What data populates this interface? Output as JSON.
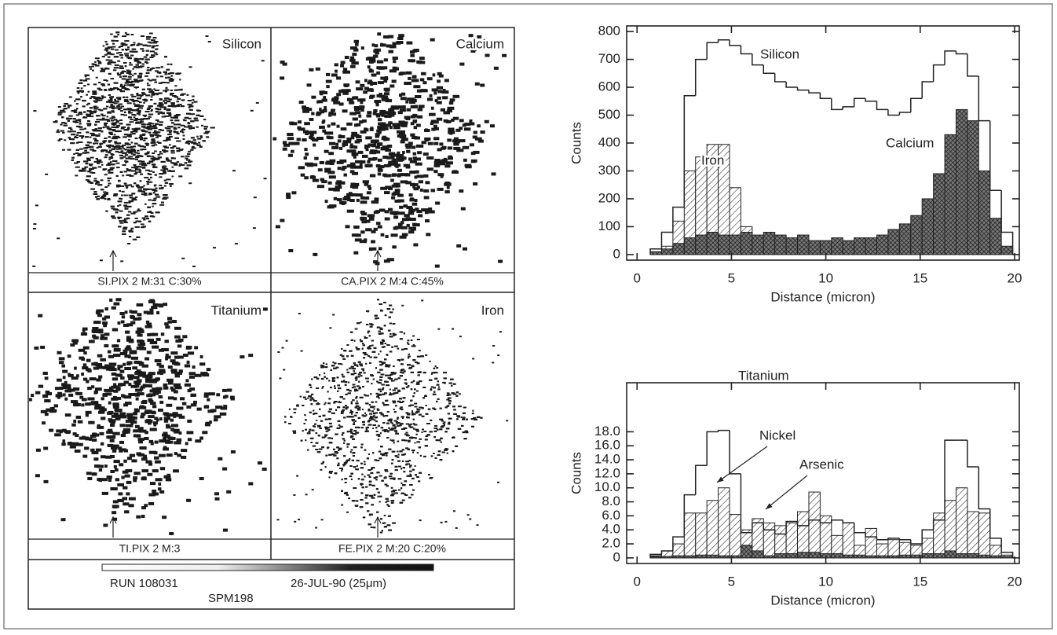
{
  "maps": {
    "panels": [
      {
        "label": "Silicon",
        "caption": "SI.PIX 2 M:31 C:30%"
      },
      {
        "label": "Calcium",
        "caption": "CA.PIX 2 M:4 C:45%"
      },
      {
        "label": "Titanium",
        "caption": "TI.PIX 2 M:3"
      },
      {
        "label": "Iron",
        "caption": "FE.PIX 2 M:20 C:20%"
      }
    ],
    "footer": {
      "run": "RUN 108031",
      "date": "26-JUL-90 (25μm)",
      "sample": "SPM198"
    }
  },
  "chart_data": [
    {
      "type": "histogram",
      "xlabel": "Distance (micron)",
      "ylabel": "Counts",
      "color": "#222",
      "bins": [
        0.7,
        1.3,
        1.9,
        2.5,
        3.1,
        3.7,
        4.3,
        4.9,
        5.5,
        6.1,
        6.7,
        7.3,
        7.9,
        8.5,
        9.1,
        9.7,
        10.3,
        10.9,
        11.5,
        12.1,
        12.7,
        13.3,
        13.9,
        14.5,
        15.1,
        15.7,
        16.3,
        16.9,
        17.5,
        18.1,
        18.7,
        19.3,
        19.9
      ],
      "series": [
        {
          "name": "Silicon",
          "fill": "none",
          "values": [
            20,
            80,
            170,
            570,
            700,
            760,
            770,
            750,
            720,
            680,
            650,
            620,
            600,
            590,
            580,
            560,
            520,
            530,
            560,
            550,
            520,
            500,
            510,
            560,
            620,
            680,
            730,
            720,
            640,
            480,
            230,
            80
          ]
        },
        {
          "name": "Iron",
          "fill": "hatch",
          "values": [
            10,
            30,
            120,
            300,
            350,
            395,
            395,
            240,
            100,
            60,
            40,
            30,
            20,
            10,
            10,
            10,
            10,
            10,
            10,
            10,
            10,
            10,
            10,
            10,
            10,
            10,
            10,
            10,
            10,
            10,
            10,
            0
          ]
        },
        {
          "name": "Calcium",
          "fill": "crosshatch",
          "values": [
            10,
            20,
            40,
            60,
            70,
            80,
            70,
            70,
            80,
            70,
            80,
            70,
            60,
            70,
            50,
            50,
            60,
            50,
            60,
            60,
            70,
            90,
            110,
            140,
            200,
            290,
            430,
            520,
            480,
            300,
            130,
            30
          ]
        }
      ],
      "xlim": [
        -0.55,
        20.25
      ],
      "ylim": [
        -20,
        820
      ],
      "xticks": [
        0,
        5,
        10,
        15,
        20
      ],
      "yticks": [
        0,
        100,
        200,
        300,
        400,
        500,
        600,
        700,
        800
      ]
    },
    {
      "type": "histogram",
      "xlabel": "Distance (micron)",
      "ylabel": "Counts",
      "color": "#222",
      "bins": [
        0.7,
        1.3,
        1.9,
        2.5,
        3.1,
        3.7,
        4.3,
        4.9,
        5.5,
        6.1,
        6.7,
        7.3,
        7.9,
        8.5,
        9.1,
        9.7,
        10.3,
        10.9,
        11.5,
        12.1,
        12.7,
        13.3,
        13.9,
        14.5,
        15.1,
        15.7,
        16.3,
        16.9,
        17.5,
        18.1,
        18.7,
        19.3,
        19.9
      ],
      "series": [
        {
          "name": "Titanium",
          "fill": "none",
          "values": [
            0.5,
            1.0,
            3.0,
            9.0,
            13.2,
            18.0,
            18.2,
            12.0,
            3.6,
            5.0,
            4.0,
            3.4,
            5.2,
            4.6,
            5.4,
            5.0,
            5.4,
            5.0,
            3.6,
            3.0,
            2.6,
            2.8,
            2.6,
            2.0,
            4.0,
            5.4,
            16.8,
            16.8,
            13.0,
            7.0,
            2.8,
            0.8
          ]
        },
        {
          "name": "Nickel",
          "fill": "hatch",
          "values": [
            0.3,
            1.0,
            2.0,
            6.4,
            6.4,
            8.2,
            10.0,
            6.2,
            4.0,
            5.6,
            5.0,
            4.6,
            5.0,
            6.6,
            9.4,
            6.0,
            3.2,
            5.0,
            1.8,
            4.2,
            2.0,
            2.6,
            2.2,
            1.8,
            2.8,
            6.4,
            8.2,
            10.0,
            6.6,
            6.4,
            1.8,
            0.4
          ]
        },
        {
          "name": "Arsenic",
          "fill": "crosshatch",
          "values": [
            0.2,
            0.2,
            0.3,
            0.3,
            0.4,
            0.4,
            0.3,
            0.3,
            1.8,
            1.0,
            0.3,
            0.6,
            0.6,
            0.8,
            0.8,
            0.6,
            0.6,
            0.4,
            0.4,
            0.3,
            0.3,
            0.3,
            0.4,
            0.4,
            0.6,
            0.6,
            1.0,
            0.6,
            0.6,
            0.4,
            0.3,
            0.2
          ]
        }
      ],
      "xlim": [
        -0.55,
        20.25
      ],
      "ylim": [
        -0.8,
        25
      ],
      "xticks": [
        0,
        5,
        10,
        15,
        20
      ],
      "yticks": [
        0,
        {
          "value": 2,
          "label": "2.0"
        },
        {
          "value": 4,
          "label": "4.0"
        },
        {
          "value": 6,
          "label": "6.0"
        },
        {
          "value": 8,
          "label": "8.0"
        },
        {
          "value": 10,
          "label": "10.0"
        },
        {
          "value": 12,
          "label": "12.0"
        },
        {
          "value": 14,
          "label": "14.0"
        },
        {
          "value": 16,
          "label": "16.0"
        },
        {
          "value": 18,
          "label": "18.0"
        }
      ]
    }
  ]
}
